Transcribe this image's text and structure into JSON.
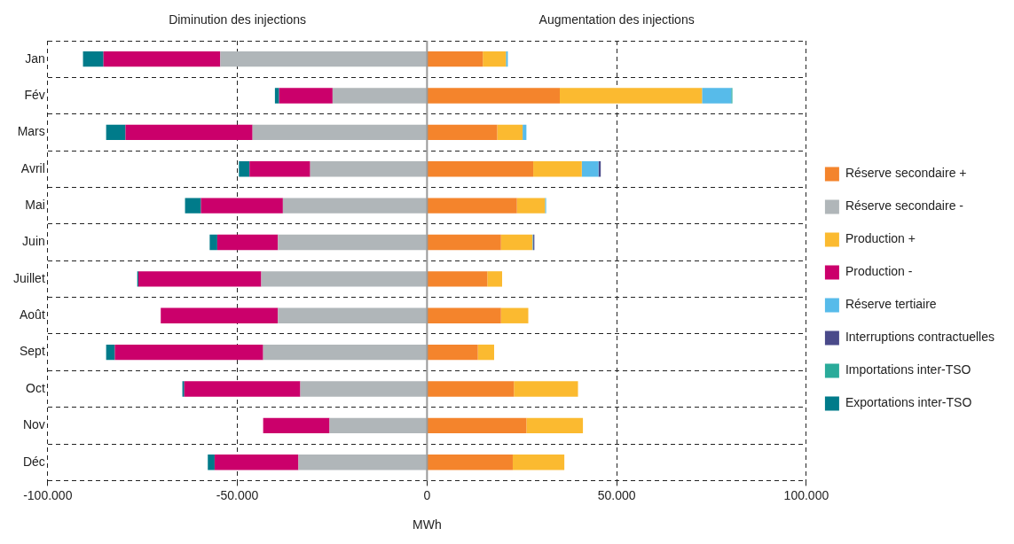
{
  "chart_data": {
    "type": "bar",
    "orientation": "horizontal",
    "stacked": true,
    "xlabel": "MWh",
    "annotations": [
      "Diminution des injections",
      "Augmentation des injections"
    ],
    "categories": [
      "Jan",
      "Fév",
      "Mars",
      "Avril",
      "Mai",
      "Juin",
      "Juillet",
      "Août",
      "Sept",
      "Oct",
      "Nov",
      "Déc"
    ],
    "series": [
      {
        "name": "Réserve secondaire +",
        "color": "#f4842c",
        "values": [
          14700,
          35000,
          18500,
          28000,
          23700,
          19500,
          15900,
          19500,
          13400,
          22900,
          26200,
          22600
        ]
      },
      {
        "name": "Réserve secondaire -",
        "color": "#b0b6b9",
        "values": [
          -54500,
          -24900,
          -46000,
          -30800,
          -38000,
          -39300,
          -43700,
          -39300,
          -43200,
          -33400,
          -25700,
          -33900
        ]
      },
      {
        "name": "Production +",
        "color": "#fbba30",
        "values": [
          6100,
          37500,
          6700,
          12800,
          7400,
          8300,
          3900,
          7200,
          4300,
          16900,
          14900,
          13600
        ]
      },
      {
        "name": "Production -",
        "color": "#cb006b",
        "values": [
          -30800,
          -14100,
          -33500,
          -16000,
          -21600,
          -16000,
          -32400,
          -30900,
          -39100,
          -30600,
          -17500,
          -22100
        ]
      },
      {
        "name": "Réserve tertiaire",
        "color": "#57bbea",
        "values": [
          500,
          7700,
          1000,
          4400,
          300,
          200,
          null,
          null,
          null,
          null,
          null,
          null
        ]
      },
      {
        "name": "Interruptions contractuelles",
        "color": "#4a4a8a",
        "values": [
          null,
          null,
          null,
          600,
          null,
          300,
          null,
          null,
          null,
          null,
          null,
          null
        ]
      },
      {
        "name": "Importations inter-TSO",
        "color": "#2aab9a",
        "values": [
          null,
          300,
          null,
          null,
          null,
          null,
          null,
          null,
          null,
          null,
          null,
          null
        ]
      },
      {
        "name": "Exportations inter-TSO",
        "color": "#007b8a",
        "values": [
          -5400,
          -1100,
          -5100,
          -2800,
          -4200,
          -2000,
          -300,
          null,
          -2300,
          -500,
          null,
          -1800
        ]
      }
    ],
    "xlim": [
      -100000,
      100000
    ],
    "xticks": [
      {
        "value": -100000,
        "label": "-100.000"
      },
      {
        "value": -50000,
        "label": "-50.000"
      },
      {
        "value": 0,
        "label": "0"
      },
      {
        "value": 50000,
        "label": "50.000"
      },
      {
        "value": 100000,
        "label": "100.000"
      }
    ],
    "grid": true,
    "legend": "right"
  }
}
